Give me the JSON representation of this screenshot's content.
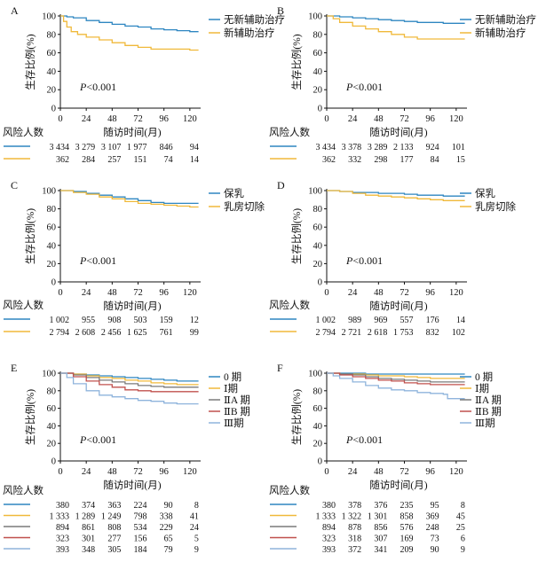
{
  "chart_data": [
    {
      "type": "line",
      "panel": "A",
      "ylabel": "生存比例(%)",
      "xlabel": "随访时间(月)",
      "xlim": [
        0,
        130
      ],
      "ylim": [
        0,
        100
      ],
      "xticks": [
        "0",
        "24",
        "48",
        "72",
        "96",
        "120"
      ],
      "yticks": [
        "0",
        "20",
        "40",
        "60",
        "80",
        "100"
      ],
      "pvalue": "P<0.001",
      "risk_title": "风险人数",
      "legend_position": "top-right",
      "series": [
        {
          "name": "无新辅助治疗",
          "color": "#2e86c1",
          "x": [
            0,
            6,
            12,
            24,
            36,
            48,
            60,
            72,
            84,
            96,
            108,
            120,
            128
          ],
          "y": [
            100,
            99,
            98,
            95,
            93,
            91,
            89,
            88,
            86,
            85,
            84,
            83,
            83
          ]
        },
        {
          "name": "新辅助治疗",
          "color": "#f0b93a",
          "x": [
            0,
            3,
            6,
            10,
            16,
            24,
            36,
            48,
            60,
            72,
            84,
            96,
            108,
            120,
            128
          ],
          "y": [
            100,
            94,
            88,
            83,
            80,
            77,
            74,
            71,
            68,
            66,
            64,
            64,
            64,
            63,
            63
          ]
        }
      ],
      "risk_rows": [
        {
          "color": "#2e86c1",
          "values": [
            "3 434",
            "3 279",
            "3 107",
            "1 977",
            "846",
            "94"
          ]
        },
        {
          "color": "#f0b93a",
          "values": [
            "362",
            "284",
            "257",
            "151",
            "74",
            "14"
          ]
        }
      ]
    },
    {
      "type": "line",
      "panel": "B",
      "ylabel": "生存比例(%)",
      "xlabel": "随访时间(月)",
      "xlim": [
        0,
        130
      ],
      "ylim": [
        0,
        100
      ],
      "xticks": [
        "0",
        "24",
        "48",
        "72",
        "96",
        "120"
      ],
      "yticks": [
        "0",
        "20",
        "40",
        "60",
        "80",
        "100"
      ],
      "pvalue": "P<0.001",
      "risk_title": "风险人数",
      "legend_position": "top-right",
      "series": [
        {
          "name": "无新辅助治疗",
          "color": "#2e86c1",
          "x": [
            0,
            12,
            24,
            36,
            48,
            60,
            72,
            84,
            96,
            108,
            120,
            128
          ],
          "y": [
            100,
            99,
            98,
            97,
            96,
            95,
            94,
            93,
            93,
            92,
            92,
            92
          ]
        },
        {
          "name": "新辅助治疗",
          "color": "#f0b93a",
          "x": [
            0,
            6,
            12,
            24,
            36,
            48,
            60,
            72,
            84,
            96,
            108,
            120,
            128
          ],
          "y": [
            100,
            97,
            93,
            89,
            86,
            83,
            80,
            77,
            75,
            75,
            75,
            75,
            75
          ]
        }
      ],
      "risk_rows": [
        {
          "color": "#2e86c1",
          "values": [
            "3 434",
            "3 378",
            "3 289",
            "2 133",
            "924",
            "101"
          ]
        },
        {
          "color": "#f0b93a",
          "values": [
            "362",
            "332",
            "298",
            "177",
            "84",
            "15"
          ]
        }
      ]
    },
    {
      "type": "line",
      "panel": "C",
      "ylabel": "生存比例(%)",
      "xlabel": "随访时间(月)",
      "xlim": [
        0,
        130
      ],
      "ylim": [
        0,
        100
      ],
      "xticks": [
        "0",
        "24",
        "48",
        "72",
        "96",
        "120"
      ],
      "yticks": [
        "0",
        "20",
        "40",
        "60",
        "80",
        "100"
      ],
      "pvalue": "P<0.001",
      "risk_title": "风险人数",
      "legend_position": "top-right",
      "series": [
        {
          "name": "保乳",
          "color": "#2e86c1",
          "x": [
            0,
            12,
            24,
            36,
            48,
            60,
            72,
            84,
            96,
            108,
            120,
            128
          ],
          "y": [
            100,
            99,
            97,
            95,
            93,
            91,
            89,
            87,
            86,
            86,
            86,
            86
          ]
        },
        {
          "name": "乳房切除",
          "color": "#f0b93a",
          "x": [
            0,
            12,
            24,
            36,
            48,
            60,
            72,
            84,
            96,
            108,
            120,
            128
          ],
          "y": [
            100,
            98,
            96,
            93,
            91,
            88,
            86,
            85,
            84,
            83,
            82,
            82
          ]
        }
      ],
      "risk_rows": [
        {
          "color": "#2e86c1",
          "values": [
            "1 002",
            "955",
            "908",
            "503",
            "159",
            "12"
          ]
        },
        {
          "color": "#f0b93a",
          "values": [
            "2 794",
            "2 608",
            "2 456",
            "1 625",
            "761",
            "99"
          ]
        }
      ]
    },
    {
      "type": "line",
      "panel": "D",
      "ylabel": "生存比例(%)",
      "xlabel": "随访时间(月)",
      "xlim": [
        0,
        130
      ],
      "ylim": [
        0,
        100
      ],
      "xticks": [
        "0",
        "24",
        "48",
        "72",
        "96",
        "120"
      ],
      "yticks": [
        "0",
        "20",
        "40",
        "60",
        "80",
        "100"
      ],
      "pvalue": "P<0.001",
      "risk_title": "风险人数",
      "legend_position": "top-right",
      "series": [
        {
          "name": "保乳",
          "color": "#2e86c1",
          "x": [
            0,
            12,
            24,
            36,
            48,
            60,
            72,
            84,
            96,
            108,
            120,
            128
          ],
          "y": [
            100,
            99,
            98,
            98,
            97,
            97,
            96,
            95,
            95,
            94,
            94,
            94
          ]
        },
        {
          "name": "乳房切除",
          "color": "#f0b93a",
          "x": [
            0,
            12,
            24,
            36,
            48,
            60,
            72,
            84,
            96,
            108,
            120,
            128
          ],
          "y": [
            100,
            99,
            97,
            95,
            94,
            93,
            92,
            91,
            90,
            89,
            89,
            89
          ]
        }
      ],
      "risk_rows": [
        {
          "color": "#2e86c1",
          "values": [
            "1 002",
            "989",
            "969",
            "557",
            "176",
            "14"
          ]
        },
        {
          "color": "#f0b93a",
          "values": [
            "2 794",
            "2 721",
            "2 618",
            "1 753",
            "832",
            "102"
          ]
        }
      ]
    },
    {
      "type": "line",
      "panel": "E",
      "ylabel": "生存比例(%)",
      "xlabel": "随访时间(月)",
      "xlim": [
        0,
        130
      ],
      "ylim": [
        0,
        100
      ],
      "xticks": [
        "0",
        "24",
        "48",
        "72",
        "96",
        "120"
      ],
      "yticks": [
        "0",
        "20",
        "40",
        "60",
        "80",
        "100"
      ],
      "pvalue": "P<0.001",
      "risk_title": "风险人数",
      "legend_position": "top-right",
      "series": [
        {
          "name": "0 期",
          "color": "#2e86c1",
          "x": [
            0,
            12,
            24,
            36,
            48,
            60,
            72,
            84,
            96,
            108,
            120,
            128
          ],
          "y": [
            100,
            99,
            98,
            97,
            96,
            95,
            94,
            93,
            92,
            91,
            91,
            91
          ]
        },
        {
          "name": "Ⅰ期",
          "color": "#f0b93a",
          "x": [
            0,
            12,
            24,
            36,
            48,
            60,
            72,
            84,
            96,
            108,
            120,
            128
          ],
          "y": [
            100,
            99,
            97,
            95,
            94,
            92,
            91,
            89,
            88,
            87,
            87,
            87
          ]
        },
        {
          "name": "ⅡA 期",
          "color": "#7a7a7a",
          "x": [
            0,
            12,
            24,
            36,
            48,
            60,
            72,
            84,
            96,
            108,
            120,
            128
          ],
          "y": [
            100,
            98,
            95,
            92,
            90,
            88,
            86,
            85,
            84,
            84,
            84,
            84
          ]
        },
        {
          "name": "ⅡB 期",
          "color": "#c0504d",
          "x": [
            0,
            12,
            24,
            36,
            48,
            60,
            72,
            84,
            96,
            108,
            120,
            128
          ],
          "y": [
            100,
            96,
            91,
            87,
            84,
            81,
            80,
            79,
            79,
            79,
            79,
            79
          ]
        },
        {
          "name": "Ⅲ期",
          "color": "#8fb4dc",
          "x": [
            0,
            6,
            12,
            24,
            36,
            48,
            60,
            72,
            84,
            96,
            108,
            120,
            128
          ],
          "y": [
            100,
            95,
            88,
            80,
            75,
            73,
            71,
            69,
            68,
            66,
            65,
            65,
            65
          ]
        }
      ],
      "risk_rows": [
        {
          "color": "#2e86c1",
          "values": [
            "380",
            "374",
            "363",
            "224",
            "90",
            "8"
          ]
        },
        {
          "color": "#f0b93a",
          "values": [
            "1 333",
            "1 289",
            "1 249",
            "798",
            "338",
            "41"
          ]
        },
        {
          "color": "#7a7a7a",
          "values": [
            "894",
            "861",
            "808",
            "534",
            "229",
            "24"
          ]
        },
        {
          "color": "#c0504d",
          "values": [
            "323",
            "301",
            "277",
            "156",
            "65",
            "5"
          ]
        },
        {
          "color": "#8fb4dc",
          "values": [
            "393",
            "348",
            "305",
            "184",
            "79",
            "9"
          ]
        }
      ]
    },
    {
      "type": "line",
      "panel": "F",
      "ylabel": "生存比例(%)",
      "xlabel": "随访时间(月)",
      "xlim": [
        0,
        130
      ],
      "ylim": [
        0,
        100
      ],
      "xticks": [
        "0",
        "24",
        "48",
        "72",
        "96",
        "120"
      ],
      "yticks": [
        "0",
        "20",
        "40",
        "60",
        "80",
        "100"
      ],
      "pvalue": "P<0.001",
      "risk_title": "风险人数",
      "legend_position": "top-right",
      "series": [
        {
          "name": "0 期",
          "color": "#2e86c1",
          "x": [
            0,
            12,
            24,
            36,
            48,
            60,
            72,
            84,
            96,
            108,
            120,
            128
          ],
          "y": [
            100,
            100,
            100,
            99,
            99,
            99,
            99,
            99,
            99,
            99,
            99,
            99
          ]
        },
        {
          "name": "Ⅰ期",
          "color": "#f0b93a",
          "x": [
            0,
            12,
            24,
            36,
            48,
            60,
            72,
            84,
            96,
            108,
            120,
            128
          ],
          "y": [
            100,
            99,
            99,
            98,
            97,
            97,
            96,
            95,
            94,
            94,
            94,
            94
          ]
        },
        {
          "name": "ⅡA 期",
          "color": "#7a7a7a",
          "x": [
            0,
            12,
            24,
            36,
            48,
            60,
            72,
            84,
            96,
            108,
            120,
            128
          ],
          "y": [
            100,
            99,
            98,
            96,
            94,
            93,
            92,
            91,
            90,
            90,
            90,
            90
          ]
        },
        {
          "name": "ⅡB 期",
          "color": "#c0504d",
          "x": [
            0,
            12,
            24,
            36,
            48,
            60,
            72,
            84,
            96,
            108,
            120,
            128
          ],
          "y": [
            100,
            98,
            96,
            94,
            92,
            91,
            89,
            88,
            87,
            87,
            87,
            87
          ]
        },
        {
          "name": "Ⅲ期",
          "color": "#8fb4dc",
          "x": [
            0,
            6,
            12,
            24,
            36,
            48,
            60,
            72,
            84,
            96,
            108,
            112,
            120,
            128
          ],
          "y": [
            100,
            97,
            94,
            90,
            86,
            83,
            81,
            80,
            78,
            77,
            76,
            71,
            71,
            71
          ]
        }
      ],
      "risk_rows": [
        {
          "color": "#2e86c1",
          "values": [
            "380",
            "378",
            "376",
            "235",
            "95",
            "8"
          ]
        },
        {
          "color": "#f0b93a",
          "values": [
            "1 333",
            "1 322",
            "1 301",
            "858",
            "369",
            "45"
          ]
        },
        {
          "color": "#7a7a7a",
          "values": [
            "894",
            "878",
            "856",
            "576",
            "248",
            "25"
          ]
        },
        {
          "color": "#c0504d",
          "values": [
            "323",
            "318",
            "307",
            "169",
            "73",
            "6"
          ]
        },
        {
          "color": "#8fb4dc",
          "values": [
            "393",
            "372",
            "341",
            "209",
            "90",
            "9"
          ]
        }
      ]
    }
  ]
}
